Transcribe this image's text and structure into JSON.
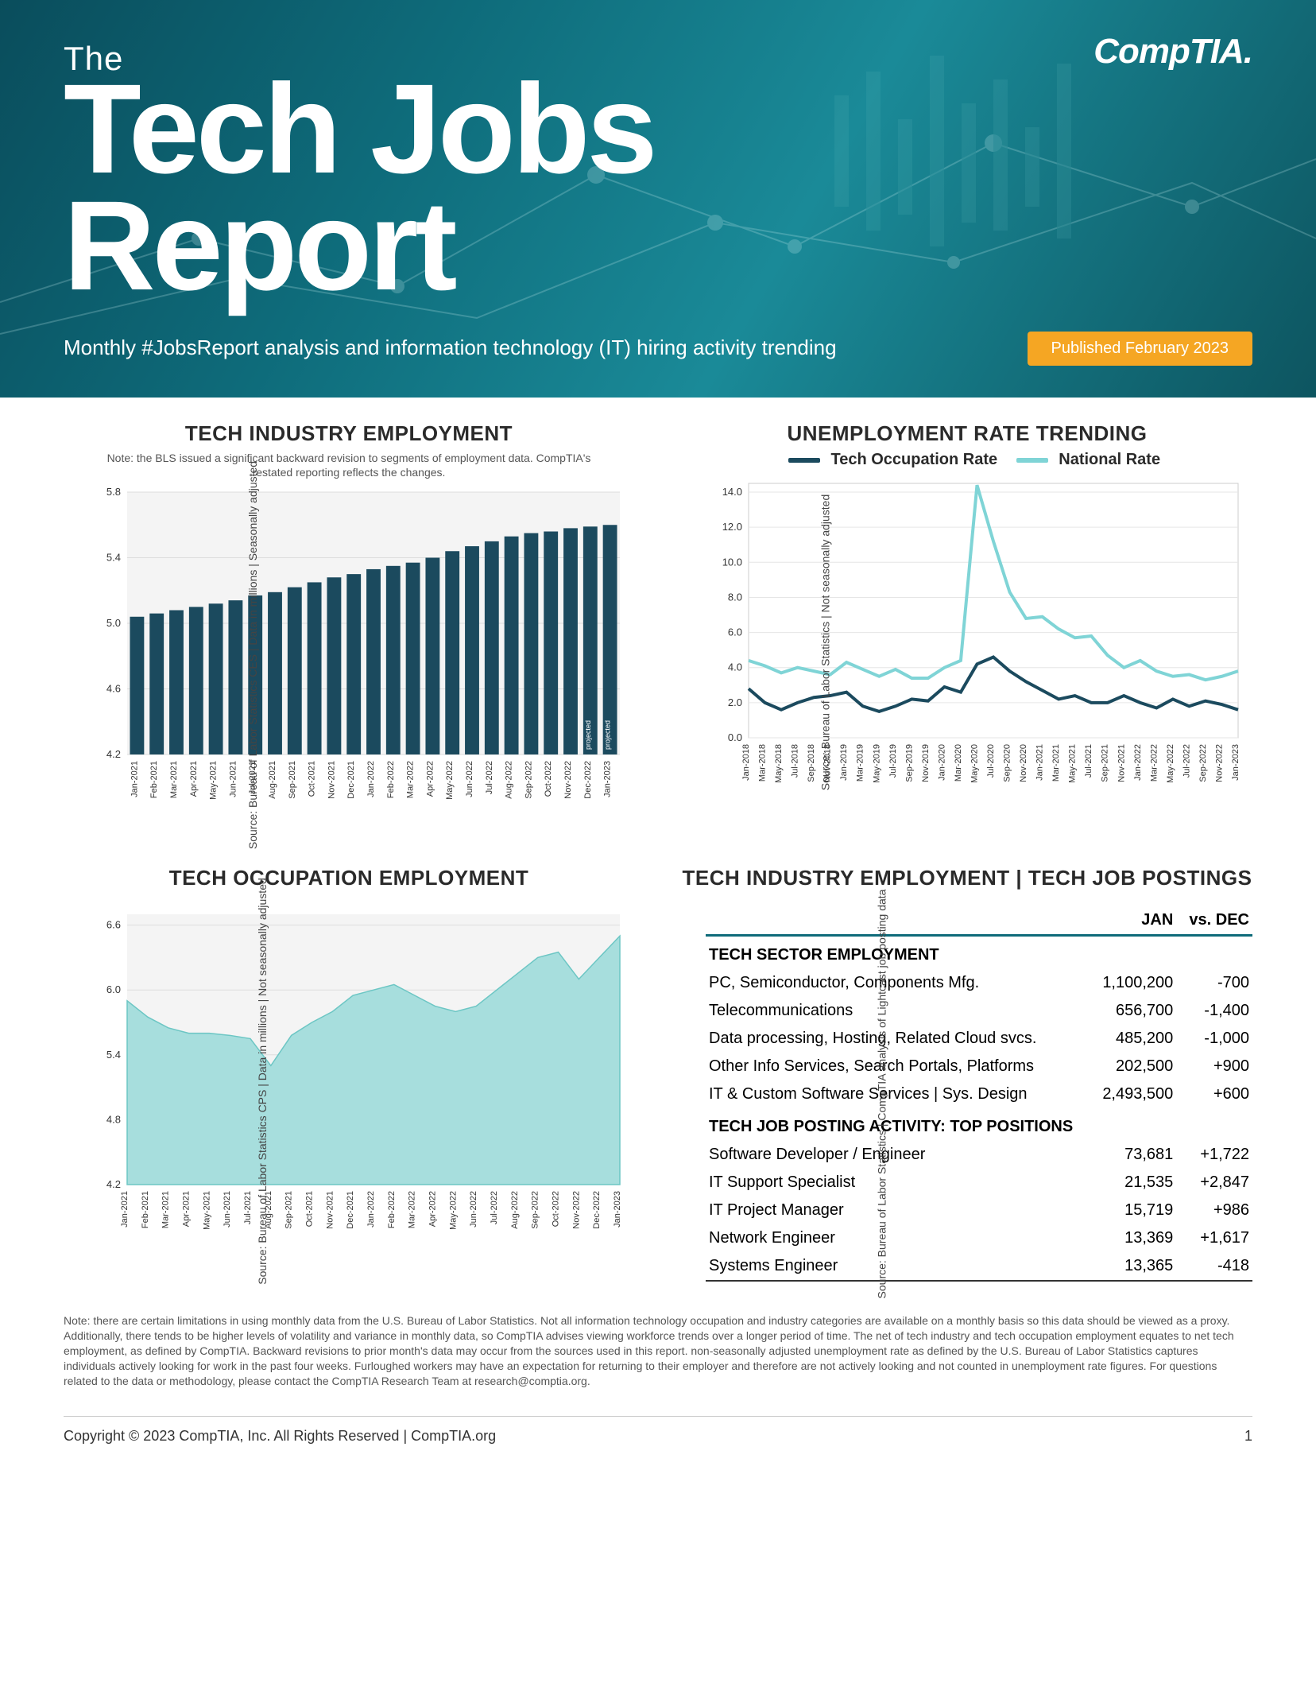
{
  "hero": {
    "the": "The",
    "title_l1": "Tech Jobs",
    "title_l2": "Report",
    "subtitle": "Monthly #JobsReport analysis and information technology (IT) hiring activity trending",
    "logo": "CompTIA.",
    "badge": "Published February 2023",
    "bg_gradient": [
      "#0a4d5c",
      "#0e6b7a",
      "#1a8a98",
      "#0d5560"
    ]
  },
  "charts": {
    "industry_employment": {
      "title": "TECH INDUSTRY EMPLOYMENT",
      "note": "Note: the BLS issued a significant backward revision to segments of employment data. CompTIA's restated reporting reflects the changes.",
      "ylabel": "Source: Bureau of Labor Statistics CES | Data in millions | Seasonally adjusted",
      "type": "bar",
      "categories": [
        "Jan-2021",
        "Feb-2021",
        "Mar-2021",
        "Apr-2021",
        "May-2021",
        "Jun-2021",
        "Jul-2021",
        "Aug-2021",
        "Sep-2021",
        "Oct-2021",
        "Nov-2021",
        "Dec-2021",
        "Jan-2022",
        "Feb-2022",
        "Mar-2022",
        "Apr-2022",
        "May-2022",
        "Jun-2022",
        "Jul-2022",
        "Aug-2022",
        "Sep-2022",
        "Oct-2022",
        "Nov-2022",
        "Dec-2022",
        "Jan-2023"
      ],
      "values": [
        5.04,
        5.06,
        5.08,
        5.1,
        5.12,
        5.14,
        5.17,
        5.19,
        5.22,
        5.25,
        5.28,
        5.3,
        5.33,
        5.35,
        5.37,
        5.4,
        5.44,
        5.47,
        5.5,
        5.53,
        5.55,
        5.56,
        5.58,
        5.59,
        5.6
      ],
      "projected_idx": [
        23,
        24
      ],
      "projected_label": "projected",
      "ylim": [
        4.2,
        5.8
      ],
      "yticks": [
        4.2,
        4.6,
        5.0,
        5.4,
        5.8
      ],
      "bar_color": "#1b4a5e",
      "grid_color": "#dddddd",
      "plot_bg": "#f4f4f4"
    },
    "unemployment": {
      "title": "UNEMPLOYMENT RATE TRENDING",
      "ylabel": "Source: Bureau of Labor Statistics | Not seasonally adjusted",
      "type": "line",
      "legend": [
        {
          "label": "Tech Occupation Rate",
          "color": "#1b4a5e"
        },
        {
          "label": "National Rate",
          "color": "#7fd4d6"
        }
      ],
      "categories": [
        "Jan-2018",
        "Mar-2018",
        "May-2018",
        "Jul-2018",
        "Sep-2018",
        "Nov-2018",
        "Jan-2019",
        "Mar-2019",
        "May-2019",
        "Jul-2019",
        "Sep-2019",
        "Nov-2019",
        "Jan-2020",
        "Mar-2020",
        "May-2020",
        "Jul-2020",
        "Sep-2020",
        "Nov-2020",
        "Jan-2021",
        "Mar-2021",
        "May-2021",
        "Jul-2021",
        "Sep-2021",
        "Nov-2021",
        "Jan-2022",
        "Mar-2022",
        "May-2022",
        "Jul-2022",
        "Sep-2022",
        "Nov-2022",
        "Jan-2023"
      ],
      "series": {
        "tech": [
          2.8,
          2.0,
          1.6,
          2.0,
          2.3,
          2.4,
          2.6,
          1.8,
          1.5,
          1.8,
          2.2,
          2.1,
          2.9,
          2.6,
          4.2,
          4.6,
          3.8,
          3.2,
          2.7,
          2.2,
          2.4,
          2.0,
          2.0,
          2.4,
          2.0,
          1.7,
          2.2,
          1.8,
          2.1,
          1.9,
          1.6
        ],
        "national": [
          4.4,
          4.1,
          3.7,
          4.0,
          3.8,
          3.6,
          4.3,
          3.9,
          3.5,
          3.9,
          3.4,
          3.4,
          4.0,
          4.4,
          14.4,
          11.2,
          8.3,
          6.8,
          6.9,
          6.2,
          5.7,
          5.8,
          4.7,
          4.0,
          4.4,
          3.8,
          3.5,
          3.6,
          3.3,
          3.5,
          3.8
        ]
      },
      "ylim": [
        0,
        14.5
      ],
      "yticks": [
        0.0,
        2.0,
        4.0,
        6.0,
        8.0,
        10.0,
        12.0,
        14.0
      ],
      "plot_bg": "#ffffff",
      "grid_color": "#e6e6e6"
    },
    "occupation_employment": {
      "title": "TECH OCCUPATION EMPLOYMENT",
      "ylabel": "Source: Bureau of Labor Statistics CPS | Data in millions | Not seasonally adjusted",
      "type": "area",
      "categories": [
        "Jan-2021",
        "Feb-2021",
        "Mar-2021",
        "Apr-2021",
        "May-2021",
        "Jun-2021",
        "Jul-2021",
        "Aug-2021",
        "Sep-2021",
        "Oct-2021",
        "Nov-2021",
        "Dec-2021",
        "Jan-2022",
        "Feb-2022",
        "Mar-2022",
        "Apr-2022",
        "May-2022",
        "Jun-2022",
        "Jul-2022",
        "Aug-2022",
        "Sep-2022",
        "Oct-2022",
        "Nov-2022",
        "Dec-2022",
        "Jan-2023"
      ],
      "values": [
        5.9,
        5.75,
        5.65,
        5.6,
        5.6,
        5.58,
        5.55,
        5.3,
        5.58,
        5.7,
        5.8,
        5.95,
        6.0,
        6.05,
        5.95,
        5.85,
        5.8,
        5.85,
        6.0,
        6.15,
        6.3,
        6.35,
        6.1,
        6.3,
        6.5
      ],
      "ylim": [
        4.2,
        6.7
      ],
      "yticks": [
        4.2,
        4.8,
        5.4,
        6.0,
        6.6
      ],
      "fill_color": "#a7dedd",
      "line_color": "#6cc6c4",
      "plot_bg": "#f4f4f4",
      "grid_color": "#dddddd"
    }
  },
  "table": {
    "title": "TECH INDUSTRY EMPLOYMENT | TECH JOB POSTINGS",
    "ylabel": "Source: Bureau of Labor Statistics | CompTIA analysis of Lightcast job posting data",
    "col_headers": [
      "",
      "JAN",
      "vs. DEC"
    ],
    "section1_header": "TECH SECTOR EMPLOYMENT",
    "section1_rows": [
      {
        "label": "PC, Semiconductor, Components Mfg.",
        "jan": "1,100,200",
        "delta": "-700"
      },
      {
        "label": "Telecommunications",
        "jan": "656,700",
        "delta": "-1,400"
      },
      {
        "label": "Data processing, Hosting, Related Cloud svcs.",
        "jan": "485,200",
        "delta": "-1,000"
      },
      {
        "label": "Other Info Services, Search Portals, Platforms",
        "jan": "202,500",
        "delta": "+900"
      },
      {
        "label": "IT & Custom Software Services | Sys. Design",
        "jan": "2,493,500",
        "delta": "+600"
      }
    ],
    "section2_header": "TECH JOB POSTING ACTIVITY: TOP POSITIONS",
    "section2_rows": [
      {
        "label": "Software Developer / Engineer",
        "jan": "73,681",
        "delta": "+1,722"
      },
      {
        "label": "IT Support Specialist",
        "jan": "21,535",
        "delta": "+2,847"
      },
      {
        "label": "IT Project Manager",
        "jan": "15,719",
        "delta": "+986"
      },
      {
        "label": "Network Engineer",
        "jan": "13,369",
        "delta": "+1,617"
      },
      {
        "label": "Systems Engineer",
        "jan": "13,365",
        "delta": "-418"
      }
    ]
  },
  "disclaimer": "Note: there are certain limitations in using monthly data from the U.S. Bureau of Labor Statistics. Not all information technology occupation and industry categories are available on a monthly basis so this data should be viewed as a proxy. Additionally, there tends to be higher levels of volatility and variance in monthly data, so CompTIA advises viewing workforce trends over a longer period of time. The net of tech industry and tech occupation employment equates to net tech employment, as defined by CompTIA. Backward revisions to prior month's data may occur from the sources used in this report. non-seasonally adjusted unemployment rate as defined by the U.S. Bureau of Labor Statistics captures individuals actively looking for work in the past four weeks. Furloughed workers may have an expectation for returning to their employer and therefore are not actively looking and not counted in unemployment rate figures. For questions related to the data or methodology, please contact the CompTIA Research Team at research@comptia.org.",
  "footer": {
    "copyright": "Copyright © 2023 CompTIA, Inc. All Rights Reserved | CompTIA.org",
    "page": "1"
  }
}
